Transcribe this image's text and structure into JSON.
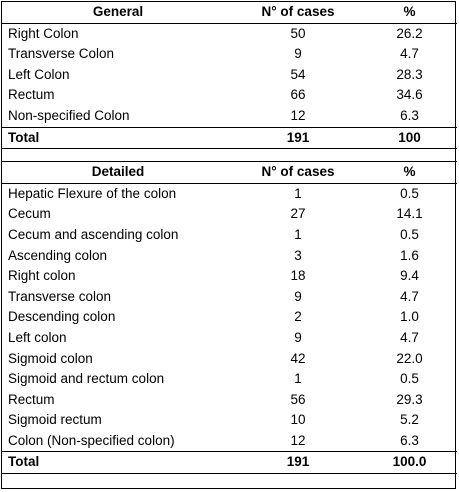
{
  "general": {
    "header": [
      "General",
      "N° of cases",
      "%"
    ],
    "rows": [
      {
        "label": "Right Colon",
        "cases": "50",
        "pct": "26.2"
      },
      {
        "label": "Transverse Colon",
        "cases": "9",
        "pct": "4.7"
      },
      {
        "label": "Left Colon",
        "cases": "54",
        "pct": "28.3"
      },
      {
        "label": "Rectum",
        "cases": "66",
        "pct": "34.6"
      },
      {
        "label": "Non-specified Colon",
        "cases": "12",
        "pct": "6.3"
      }
    ],
    "total": {
      "label": "Total",
      "cases": "191",
      "pct": "100"
    }
  },
  "detailed": {
    "header": [
      "Detailed",
      "N° of cases",
      "%"
    ],
    "rows": [
      {
        "label": "Hepatic Flexure of the colon",
        "cases": "1",
        "pct": "0.5"
      },
      {
        "label": "Cecum",
        "cases": "27",
        "pct": "14.1"
      },
      {
        "label": "Cecum and ascending colon",
        "cases": "1",
        "pct": "0.5"
      },
      {
        "label": "Ascending colon",
        "cases": "3",
        "pct": "1.6"
      },
      {
        "label": "Right colon",
        "cases": "18",
        "pct": "9.4"
      },
      {
        "label": "Transverse colon",
        "cases": "9",
        "pct": "4.7"
      },
      {
        "label": "Descending colon",
        "cases": "2",
        "pct": "1.0"
      },
      {
        "label": "Left colon",
        "cases": "9",
        "pct": "4.7"
      },
      {
        "label": "Sigmoid colon",
        "cases": "42",
        "pct": "22.0"
      },
      {
        "label": "Sigmoid and rectum colon",
        "cases": "1",
        "pct": "0.5"
      },
      {
        "label": "Rectum",
        "cases": "56",
        "pct": "29.3"
      },
      {
        "label": "Sigmoid rectum",
        "cases": "10",
        "pct": "5.2"
      },
      {
        "label": "Colon (Non-specified colon)",
        "cases": "12",
        "pct": "6.3"
      }
    ],
    "total": {
      "label": "Total",
      "cases": "191",
      "pct": "100.0"
    }
  }
}
